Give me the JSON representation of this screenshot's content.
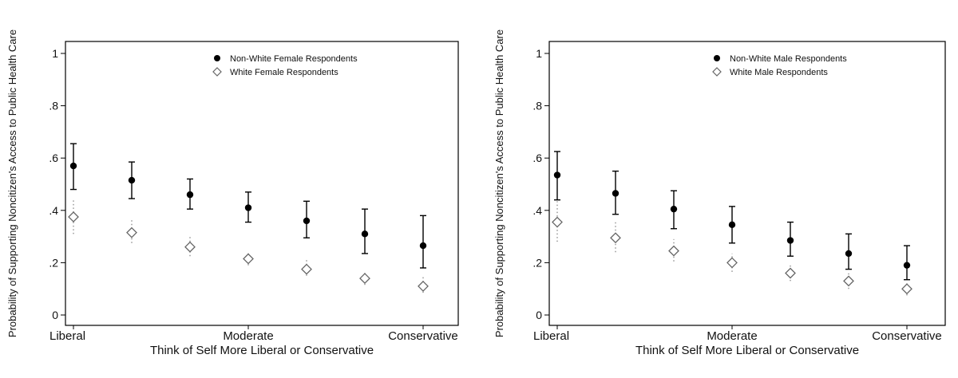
{
  "chart_data": [
    {
      "type": "scatter",
      "title": "",
      "xlabel": "Think of Self More Liberal or Conservative",
      "ylabel": "Probability of Supporting Noncitizen's Access to Public Health Care",
      "ylim": [
        0,
        1
      ],
      "y_ticks": [
        {
          "value": 0,
          "label": "0"
        },
        {
          "value": 0.2,
          "label": ".2"
        },
        {
          "value": 0.4,
          "label": ".4"
        },
        {
          "value": 0.6,
          "label": ".6"
        },
        {
          "value": 0.8,
          "label": ".8"
        },
        {
          "value": 1,
          "label": "1"
        }
      ],
      "x": [
        1,
        2,
        3,
        4,
        5,
        6,
        7
      ],
      "x_tick_labels": [
        {
          "x": 1,
          "label": "Liberal"
        },
        {
          "x": 4,
          "label": "Moderate"
        },
        {
          "x": 7,
          "label": "Conservative"
        }
      ],
      "grid": false,
      "legend_position": "top-right",
      "series": [
        {
          "name": "Non-White Female Respondents",
          "marker": "filled-circle",
          "color": "#000000",
          "values": [
            0.57,
            0.515,
            0.46,
            0.41,
            0.36,
            0.31,
            0.265
          ],
          "lower": [
            0.48,
            0.445,
            0.405,
            0.355,
            0.295,
            0.235,
            0.18
          ],
          "upper": [
            0.655,
            0.585,
            0.52,
            0.47,
            0.435,
            0.405,
            0.38
          ]
        },
        {
          "name": "White Female Respondents",
          "marker": "hollow-diamond",
          "color": "#666666",
          "values": [
            0.375,
            0.315,
            0.26,
            0.215,
            0.175,
            0.14,
            0.11
          ],
          "lower": [
            0.31,
            0.275,
            0.225,
            0.19,
            0.15,
            0.115,
            0.085
          ],
          "upper": [
            0.445,
            0.365,
            0.3,
            0.245,
            0.21,
            0.17,
            0.15
          ]
        }
      ]
    },
    {
      "type": "scatter",
      "title": "",
      "xlabel": "Think of Self More Liberal or Conservative",
      "ylabel": "Probability of Supporting Noncitizen's Access to Public Health Care",
      "ylim": [
        0,
        1
      ],
      "y_ticks": [
        {
          "value": 0,
          "label": "0"
        },
        {
          "value": 0.2,
          "label": ".2"
        },
        {
          "value": 0.4,
          "label": ".4"
        },
        {
          "value": 0.6,
          "label": ".6"
        },
        {
          "value": 0.8,
          "label": ".8"
        },
        {
          "value": 1,
          "label": "1"
        }
      ],
      "x": [
        1,
        2,
        3,
        4,
        5,
        6,
        7
      ],
      "x_tick_labels": [
        {
          "x": 1,
          "label": "Liberal"
        },
        {
          "x": 4,
          "label": "Moderate"
        },
        {
          "x": 7,
          "label": "Conservative"
        }
      ],
      "grid": false,
      "legend_position": "top-right",
      "series": [
        {
          "name": "Non-White Male Respondents",
          "marker": "filled-circle",
          "color": "#000000",
          "values": [
            0.535,
            0.465,
            0.405,
            0.345,
            0.285,
            0.235,
            0.19
          ],
          "lower": [
            0.44,
            0.385,
            0.33,
            0.275,
            0.225,
            0.175,
            0.135
          ],
          "upper": [
            0.625,
            0.55,
            0.475,
            0.415,
            0.355,
            0.31,
            0.265
          ]
        },
        {
          "name": "White Male Respondents",
          "marker": "hollow-diamond",
          "color": "#666666",
          "values": [
            0.355,
            0.295,
            0.245,
            0.2,
            0.16,
            0.13,
            0.1
          ],
          "lower": [
            0.28,
            0.24,
            0.205,
            0.165,
            0.13,
            0.1,
            0.075
          ],
          "upper": [
            0.435,
            0.355,
            0.29,
            0.235,
            0.19,
            0.16,
            0.13
          ]
        }
      ]
    }
  ]
}
